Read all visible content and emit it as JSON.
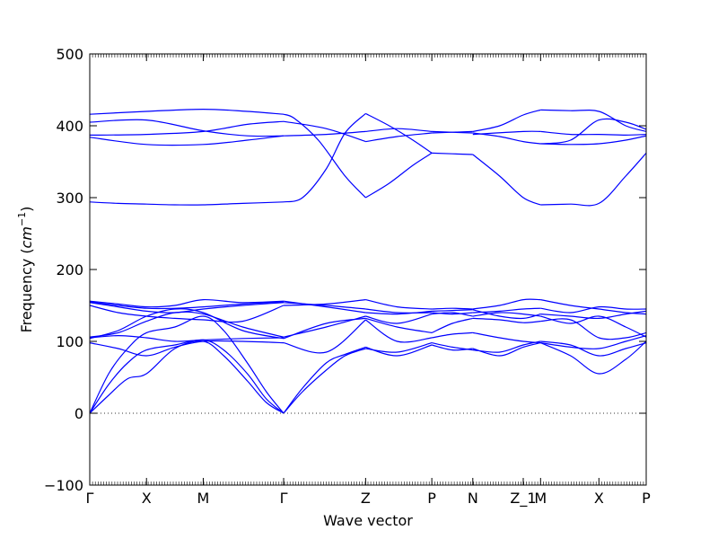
{
  "chart_data": {
    "type": "line",
    "title": "",
    "xlabel": "Wave vector",
    "ylabel_main": "Frequency (",
    "ylabel_unit": "cm",
    "ylabel_exp": "−1",
    "ylabel_close": ")",
    "ylim": [
      -100,
      500
    ],
    "yticks": [
      -100,
      0,
      100,
      200,
      300,
      400,
      500
    ],
    "ytick_labels": [
      "−100",
      "0",
      "100",
      "200",
      "300",
      "400",
      "500"
    ],
    "xlim": [
      0,
      3.53
    ],
    "xticks": [
      {
        "pos": 0.0,
        "label": "Γ"
      },
      {
        "pos": 0.36,
        "label": "X"
      },
      {
        "pos": 0.72,
        "label": "M"
      },
      {
        "pos": 1.23,
        "label": "Γ"
      },
      {
        "pos": 1.75,
        "label": "Z"
      },
      {
        "pos": 2.17,
        "label": "P"
      },
      {
        "pos": 2.43,
        "label": "N"
      },
      {
        "pos": 2.75,
        "label": "Z_1"
      },
      {
        "pos": 2.86,
        "label": "M"
      },
      {
        "pos": 3.23,
        "label": "X"
      },
      {
        "pos": 3.53,
        "label": "P"
      }
    ],
    "zero_line": 0,
    "line_color": "#0000ff",
    "zero_line_color": "#333333",
    "grid": false,
    "series": [
      {
        "x": [
          0,
          0.18,
          0.36,
          0.54,
          0.72,
          0.97,
          1.23
        ],
        "y": [
          294,
          292,
          291,
          290,
          290,
          292,
          294
        ]
      },
      {
        "x": [
          0,
          0.36,
          0.72,
          1.0,
          1.23
        ],
        "y": [
          384,
          374,
          374,
          380,
          386
        ]
      },
      {
        "x": [
          0,
          0.36,
          0.72,
          1.0,
          1.23
        ],
        "y": [
          387,
          388,
          392,
          402,
          406
        ]
      },
      {
        "x": [
          0,
          0.36,
          0.72,
          1.0,
          1.23
        ],
        "y": [
          405,
          408,
          393,
          386,
          386
        ]
      },
      {
        "x": [
          0,
          0.36,
          0.72,
          1.0,
          1.23
        ],
        "y": [
          416,
          420,
          423,
          420,
          416
        ]
      },
      {
        "x": [
          1.23,
          1.35,
          1.5,
          1.62,
          1.75
        ],
        "y": [
          294,
          300,
          340,
          390,
          417
        ]
      },
      {
        "x": [
          1.23,
          1.3,
          1.45,
          1.62,
          1.75
        ],
        "y": [
          416,
          410,
          380,
          330,
          300
        ]
      },
      {
        "x": [
          1.23,
          1.5,
          1.75
        ],
        "y": [
          386,
          388,
          392
        ]
      },
      {
        "x": [
          1.23,
          1.5,
          1.75
        ],
        "y": [
          406,
          396,
          378
        ]
      },
      {
        "x": [
          1.75,
          1.9,
          2.05,
          2.17
        ],
        "y": [
          300,
          320,
          345,
          362
        ]
      },
      {
        "x": [
          1.75,
          1.9,
          2.05,
          2.17
        ],
        "y": [
          417,
          400,
          380,
          362
        ]
      },
      {
        "x": [
          1.75,
          1.95,
          2.17
        ],
        "y": [
          392,
          396,
          392
        ]
      },
      {
        "x": [
          1.75,
          1.95,
          2.17
        ],
        "y": [
          378,
          385,
          390
        ]
      },
      {
        "x": [
          2.17,
          2.43
        ],
        "y": [
          362,
          360
        ]
      },
      {
        "x": [
          2.17,
          2.43
        ],
        "y": [
          392,
          390
        ]
      },
      {
        "x": [
          2.17,
          2.43
        ],
        "y": [
          390,
          392
        ]
      },
      {
        "x": [
          2.43,
          2.6,
          2.75,
          2.86
        ],
        "y": [
          360,
          330,
          300,
          290
        ]
      },
      {
        "x": [
          2.43,
          2.6,
          2.75,
          2.86
        ],
        "y": [
          392,
          400,
          415,
          422
        ]
      },
      {
        "x": [
          2.43,
          2.6,
          2.75,
          2.86
        ],
        "y": [
          390,
          385,
          378,
          375
        ]
      },
      {
        "x": [
          2.43,
          2.75,
          2.86
        ],
        "y": [
          388,
          392,
          392
        ]
      },
      {
        "x": [
          2.86,
          3.05,
          3.23,
          3.4,
          3.53
        ],
        "y": [
          290,
          291,
          292,
          330,
          362
        ]
      },
      {
        "x": [
          2.86,
          3.05,
          3.23,
          3.4,
          3.53
        ],
        "y": [
          422,
          421,
          420,
          400,
          392
        ]
      },
      {
        "x": [
          2.86,
          3.05,
          3.23,
          3.4,
          3.53
        ],
        "y": [
          375,
          380,
          408,
          405,
          395
        ]
      },
      {
        "x": [
          2.86,
          3.05,
          3.23,
          3.4,
          3.53
        ],
        "y": [
          392,
          388,
          388,
          387,
          388
        ]
      },
      {
        "x": [
          2.86,
          3.05,
          3.23,
          3.4,
          3.53
        ],
        "y": [
          375,
          374,
          375,
          380,
          386
        ]
      },
      {
        "x": [
          0,
          0.12,
          0.24,
          0.36,
          0.54,
          0.72,
          0.85,
          1.0,
          1.12,
          1.23
        ],
        "y": [
          0,
          25,
          48,
          55,
          90,
          100,
          80,
          45,
          15,
          0
        ]
      },
      {
        "x": [
          0,
          0.12,
          0.24,
          0.36,
          0.54,
          0.72,
          0.85,
          1.0,
          1.12,
          1.23
        ],
        "y": [
          0,
          40,
          70,
          88,
          95,
          102,
          88,
          55,
          20,
          0
        ]
      },
      {
        "x": [
          0,
          0.12,
          0.24,
          0.36,
          0.54,
          0.72,
          0.85,
          1.0,
          1.12,
          1.23
        ],
        "y": [
          0,
          55,
          90,
          112,
          120,
          135,
          115,
          70,
          30,
          0
        ]
      },
      {
        "x": [
          0,
          0.18,
          0.36,
          0.54,
          0.72,
          0.97,
          1.23
        ],
        "y": [
          98,
          90,
          80,
          92,
          100,
          100,
          98
        ]
      },
      {
        "x": [
          0,
          0.18,
          0.36,
          0.54,
          0.72,
          0.97,
          1.23
        ],
        "y": [
          105,
          108,
          105,
          100,
          102,
          104,
          105
        ]
      },
      {
        "x": [
          0,
          0.18,
          0.36,
          0.54,
          0.72,
          0.97,
          1.23
        ],
        "y": [
          106,
          112,
          128,
          140,
          138,
          120,
          106
        ]
      },
      {
        "x": [
          0,
          0.18,
          0.36,
          0.54,
          0.72,
          0.97,
          1.23
        ],
        "y": [
          150,
          140,
          135,
          132,
          130,
          128,
          150
        ]
      },
      {
        "x": [
          0,
          0.18,
          0.36,
          0.54,
          0.72,
          0.97,
          1.23
        ],
        "y": [
          154,
          148,
          142,
          140,
          145,
          150,
          154
        ]
      },
      {
        "x": [
          0,
          0.18,
          0.36,
          0.54,
          0.72,
          0.97,
          1.23
        ],
        "y": [
          156,
          152,
          148,
          150,
          158,
          154,
          156
        ]
      },
      {
        "x": [
          0,
          0.18,
          0.36,
          0.54,
          0.72,
          0.97,
          1.23
        ],
        "y": [
          155,
          150,
          146,
          146,
          148,
          152,
          155
        ]
      },
      {
        "x": [
          0,
          0.18,
          0.36,
          0.54,
          0.72,
          0.97,
          1.23
        ],
        "y": [
          104,
          115,
          135,
          145,
          140,
          115,
          104
        ]
      },
      {
        "x": [
          1.23,
          1.35,
          1.5,
          1.62,
          1.75
        ],
        "y": [
          0,
          35,
          70,
          82,
          92
        ]
      },
      {
        "x": [
          1.23,
          1.35,
          1.5,
          1.62,
          1.75
        ],
        "y": [
          0,
          30,
          60,
          80,
          90
        ]
      },
      {
        "x": [
          1.23,
          1.5,
          1.75
        ],
        "y": [
          98,
          85,
          130
        ]
      },
      {
        "x": [
          1.23,
          1.5,
          1.75
        ],
        "y": [
          104,
          125,
          132
        ]
      },
      {
        "x": [
          1.23,
          1.5,
          1.75
        ],
        "y": [
          106,
          120,
          135
        ]
      },
      {
        "x": [
          1.23,
          1.5,
          1.75
        ],
        "y": [
          150,
          152,
          158
        ]
      },
      {
        "x": [
          1.23,
          1.5,
          1.75
        ],
        "y": [
          154,
          150,
          145
        ]
      },
      {
        "x": [
          1.23,
          1.5,
          1.75
        ],
        "y": [
          156,
          148,
          140
        ]
      },
      {
        "x": [
          1.75,
          1.95,
          2.17
        ],
        "y": [
          92,
          80,
          95
        ]
      },
      {
        "x": [
          1.75,
          1.95,
          2.17
        ],
        "y": [
          90,
          85,
          98
        ]
      },
      {
        "x": [
          1.75,
          1.95,
          2.17
        ],
        "y": [
          130,
          100,
          105
        ]
      },
      {
        "x": [
          1.75,
          1.95,
          2.17
        ],
        "y": [
          132,
          120,
          112
        ]
      },
      {
        "x": [
          1.75,
          1.95,
          2.17
        ],
        "y": [
          135,
          125,
          138
        ]
      },
      {
        "x": [
          1.75,
          1.95,
          2.17
        ],
        "y": [
          158,
          148,
          145
        ]
      },
      {
        "x": [
          1.75,
          1.95,
          2.17
        ],
        "y": [
          145,
          140,
          140
        ]
      },
      {
        "x": [
          1.75,
          1.95,
          2.17
        ],
        "y": [
          140,
          138,
          142
        ]
      },
      {
        "x": [
          2.17,
          2.3,
          2.43
        ],
        "y": [
          95,
          88,
          90
        ]
      },
      {
        "x": [
          2.17,
          2.3,
          2.43
        ],
        "y": [
          98,
          92,
          88
        ]
      },
      {
        "x": [
          2.17,
          2.3,
          2.43
        ],
        "y": [
          105,
          110,
          112
        ]
      },
      {
        "x": [
          2.17,
          2.3,
          2.43
        ],
        "y": [
          112,
          125,
          132
        ]
      },
      {
        "x": [
          2.17,
          2.3,
          2.43
        ],
        "y": [
          138,
          140,
          135
        ]
      },
      {
        "x": [
          2.17,
          2.3,
          2.43
        ],
        "y": [
          145,
          146,
          145
        ]
      },
      {
        "x": [
          2.17,
          2.3,
          2.43
        ],
        "y": [
          140,
          138,
          140
        ]
      },
      {
        "x": [
          2.17,
          2.3,
          2.43
        ],
        "y": [
          142,
          143,
          144
        ]
      },
      {
        "x": [
          2.43,
          2.6,
          2.75,
          2.86
        ],
        "y": [
          90,
          80,
          92,
          98
        ]
      },
      {
        "x": [
          2.43,
          2.6,
          2.75,
          2.86
        ],
        "y": [
          88,
          85,
          95,
          100
        ]
      },
      {
        "x": [
          2.43,
          2.6,
          2.75,
          2.86
        ],
        "y": [
          112,
          105,
          100,
          98
        ]
      },
      {
        "x": [
          2.43,
          2.6,
          2.75,
          2.86
        ],
        "y": [
          132,
          130,
          126,
          128
        ]
      },
      {
        "x": [
          2.43,
          2.6,
          2.75,
          2.86
        ],
        "y": [
          135,
          140,
          138,
          135
        ]
      },
      {
        "x": [
          2.43,
          2.6,
          2.75,
          2.86
        ],
        "y": [
          145,
          150,
          158,
          158
        ]
      },
      {
        "x": [
          2.43,
          2.6,
          2.75,
          2.86
        ],
        "y": [
          140,
          142,
          145,
          146
        ]
      },
      {
        "x": [
          2.43,
          2.6,
          2.75,
          2.86
        ],
        "y": [
          144,
          135,
          132,
          138
        ]
      },
      {
        "x": [
          2.86,
          3.05,
          3.23,
          3.4,
          3.53
        ],
        "y": [
          98,
          80,
          55,
          75,
          100
        ]
      },
      {
        "x": [
          2.86,
          3.05,
          3.23,
          3.4,
          3.53
        ],
        "y": [
          100,
          95,
          80,
          90,
          98
        ]
      },
      {
        "x": [
          2.86,
          3.05,
          3.23,
          3.4,
          3.53
        ],
        "y": [
          98,
          92,
          90,
          100,
          108
        ]
      },
      {
        "x": [
          2.86,
          3.05,
          3.23,
          3.4,
          3.53
        ],
        "y": [
          128,
          130,
          105,
          105,
          112
        ]
      },
      {
        "x": [
          2.86,
          3.05,
          3.23,
          3.4,
          3.53
        ],
        "y": [
          135,
          125,
          135,
          120,
          106
        ]
      },
      {
        "x": [
          2.86,
          3.05,
          3.23,
          3.4,
          3.53
        ],
        "y": [
          158,
          150,
          145,
          140,
          138
        ]
      },
      {
        "x": [
          2.86,
          3.05,
          3.23,
          3.4,
          3.53
        ],
        "y": [
          146,
          140,
          148,
          145,
          145
        ]
      },
      {
        "x": [
          2.86,
          3.05,
          3.23,
          3.4,
          3.53
        ],
        "y": [
          138,
          135,
          132,
          138,
          142
        ]
      }
    ]
  }
}
